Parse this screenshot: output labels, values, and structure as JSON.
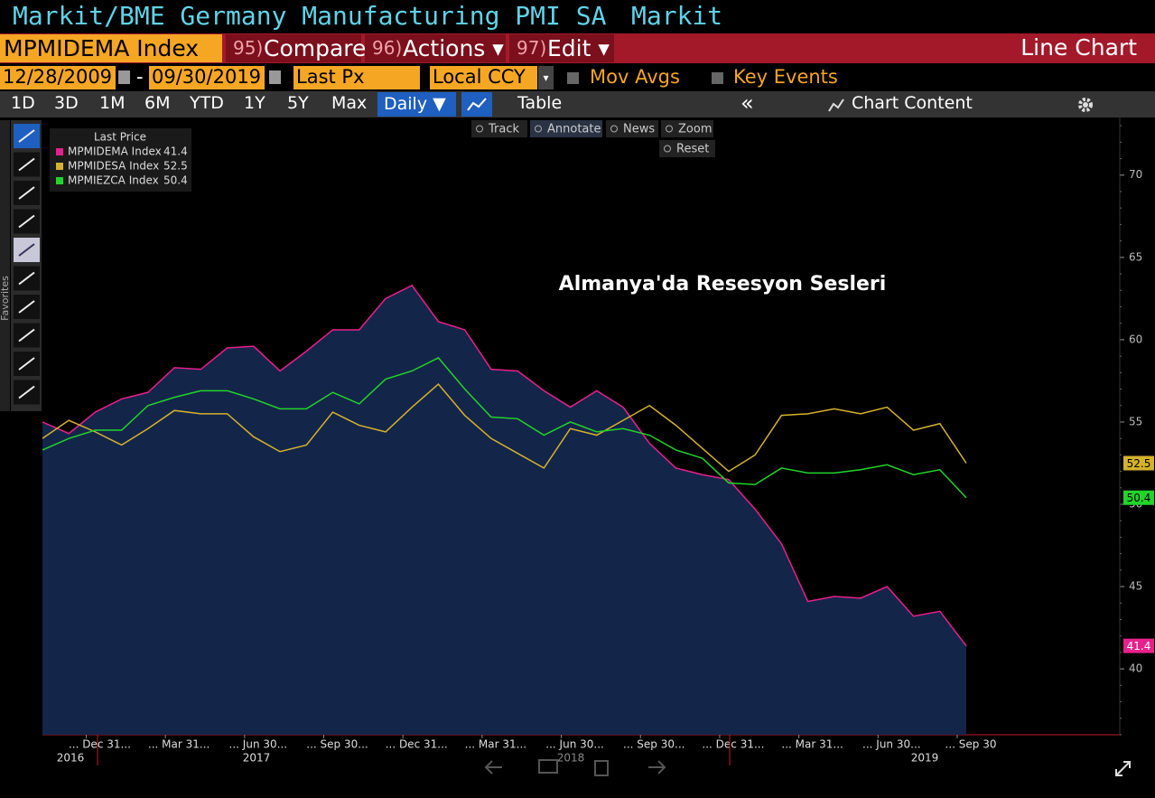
{
  "header": {
    "title": "Markit/BME Germany Manufacturing PMI SA",
    "source": "Markit"
  },
  "toolbar": {
    "ticker": "MPMIDEMA Index",
    "buttons": [
      {
        "num": "95)",
        "label": "Compare"
      },
      {
        "num": "96)",
        "label": "Actions ▾"
      },
      {
        "num": "97)",
        "label": "Edit ▾"
      }
    ],
    "chart_type": "Line Chart"
  },
  "settings": {
    "start": "12/28/2009",
    "dash": "-",
    "end": "09/30/2019",
    "field": "Last Px",
    "currency": "Local CCY",
    "options": [
      "Mov Avgs",
      "Key Events"
    ]
  },
  "periods": [
    "1D",
    "3D",
    "1M",
    "6M",
    "YTD",
    "1Y",
    "5Y",
    "Max"
  ],
  "frequency": "Daily ▼",
  "table": "Table",
  "collapse": "«",
  "chart_content": "Chart Content",
  "chart_tools": [
    "Track",
    "Annotate",
    "News",
    "Zoom",
    "Reset"
  ],
  "sidebar": "Favorites",
  "chart_data": {
    "type": "line",
    "legend_title": "Last Price",
    "annotation": "Almanya'da Resesyon Sesleri",
    "series": [
      {
        "name": "MPMIDEMA Index",
        "color": "#e8208c",
        "fill": "#14254a",
        "values": [
          55.0,
          54.3,
          55.6,
          56.4,
          56.8,
          58.3,
          58.2,
          59.5,
          59.6,
          58.1,
          59.3,
          60.6,
          60.6,
          62.5,
          63.3,
          61.1,
          60.6,
          58.2,
          58.1,
          56.9,
          55.9,
          56.9,
          55.9,
          53.7,
          52.2,
          51.8,
          51.5,
          49.7,
          47.6,
          44.1,
          44.4,
          44.3,
          45.0,
          43.2,
          43.5,
          41.4
        ]
      },
      {
        "name": "MPMIDESA Index",
        "color": "#d4b22c",
        "values": [
          54.0,
          55.1,
          54.4,
          53.6,
          54.6,
          55.7,
          55.5,
          55.5,
          54.1,
          53.2,
          53.6,
          55.6,
          54.8,
          54.4,
          55.9,
          57.3,
          55.4,
          54.0,
          53.1,
          52.2,
          54.6,
          54.2,
          55.1,
          56.0,
          54.8,
          53.4,
          52.0,
          53.0,
          55.4,
          55.5,
          55.8,
          55.5,
          55.9,
          54.5,
          54.9,
          52.5
        ]
      },
      {
        "name": "MPMIEZCA Index",
        "color": "#22d42a",
        "values": [
          53.3,
          54.0,
          54.5,
          54.5,
          56.0,
          56.5,
          56.9,
          56.9,
          56.4,
          55.8,
          55.8,
          56.8,
          56.1,
          57.6,
          58.1,
          58.9,
          57.0,
          55.3,
          55.2,
          54.2,
          55.0,
          54.4,
          54.6,
          54.2,
          53.3,
          52.8,
          51.3,
          51.2,
          52.2,
          51.9,
          51.9,
          52.1,
          52.4,
          51.8,
          52.1,
          50.4
        ]
      }
    ],
    "xlim": [
      0,
      35
    ],
    "ylim": [
      36,
      73.5
    ],
    "yticks": [
      40,
      45,
      50,
      55,
      60,
      65,
      70
    ],
    "x_labels": [
      "... Dec 31...",
      "... Mar 31...",
      "... Jun 30...",
      "... Sep 30...",
      "... Dec 31...",
      "... Mar 31...",
      "... Jun 30...",
      "... Sep 30...",
      "... Dec 31...",
      "... Mar 31...",
      "... Jun 30...",
      "... Sep 30"
    ],
    "years": [
      "2016",
      "2017",
      "2018",
      "2019"
    ]
  }
}
